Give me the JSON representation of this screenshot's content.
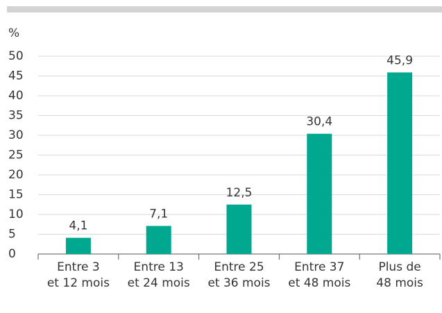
{
  "chart_data": {
    "type": "bar",
    "y_label": "%",
    "categories": [
      "Entre 3\net 12 mois",
      "Entre 13\net 24 mois",
      "Entre 25\net 36 mois",
      "Entre 37\net 48 mois",
      "Plus de\n48 mois"
    ],
    "values": [
      4.1,
      7.1,
      12.5,
      30.4,
      45.9
    ],
    "value_labels": [
      "4,1",
      "7,1",
      "12,5",
      "30,4",
      "45,9"
    ],
    "color": "#00a88f",
    "ylim": [
      0,
      50
    ],
    "yticks": [
      0,
      5,
      10,
      15,
      20,
      25,
      30,
      35,
      40,
      45,
      50
    ],
    "grid": true
  }
}
